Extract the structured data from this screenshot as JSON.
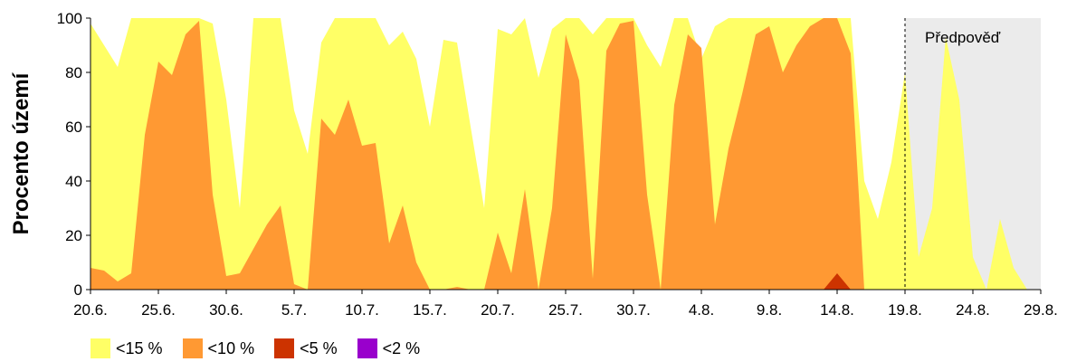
{
  "chart_data": {
    "type": "area",
    "ylabel": "Procento území",
    "ylim": [
      0,
      100
    ],
    "yticks": [
      "0",
      "20",
      "40",
      "60",
      "80",
      "100"
    ],
    "xlim_day": [
      0,
      70
    ],
    "xtick_labels": [
      "20.6.",
      "25.6.",
      "30.6.",
      "5.7.",
      "10.7.",
      "15.7.",
      "20.7.",
      "25.7.",
      "30.7.",
      "4.8.",
      "9.8.",
      "14.8.",
      "19.8.",
      "24.8.",
      "29.8."
    ],
    "xtick_days": [
      0,
      5,
      10,
      15,
      20,
      25,
      30,
      35,
      40,
      45,
      50,
      55,
      60,
      65,
      70
    ],
    "forecast_label": "Předpověď",
    "forecast_start_day": 60,
    "colors": {
      "forecast_bg": "#ebebeb",
      "s15": "#ffff66",
      "s10": "#ff9933",
      "s5": "#cc3300",
      "s2": "#9900cc"
    },
    "series": [
      {
        "name": "<15 %",
        "color": "#ffff66",
        "x": [
          0,
          1,
          2,
          3,
          4,
          5,
          6,
          7,
          8,
          9,
          10,
          11,
          12,
          13,
          14,
          15,
          16,
          17,
          18,
          19,
          20,
          21,
          22,
          23,
          24,
          25,
          26,
          27,
          28,
          29,
          30,
          31,
          32,
          33,
          34,
          35,
          36,
          37,
          38,
          39,
          40,
          41,
          42,
          43,
          44,
          45,
          46,
          47,
          48,
          49,
          50,
          51,
          52,
          53,
          54,
          55,
          56,
          57,
          58,
          59,
          60,
          61,
          62,
          63,
          64,
          65,
          66,
          67,
          68,
          69
        ],
        "values": [
          98,
          90,
          82,
          100,
          100,
          100,
          100,
          100,
          100,
          98,
          70,
          30,
          100,
          100,
          100,
          66,
          50,
          91,
          100,
          100,
          100,
          100,
          90,
          95,
          85,
          60,
          92,
          91,
          60,
          30,
          96,
          94,
          100,
          78,
          96,
          100,
          100,
          94,
          100,
          100,
          100,
          90,
          82,
          100,
          100,
          85,
          97,
          100,
          100,
          100,
          100,
          100,
          100,
          100,
          100,
          100,
          100,
          40,
          26,
          47,
          80,
          12,
          30,
          93,
          70,
          12,
          0,
          26,
          8,
          0
        ]
      },
      {
        "name": "<10 %",
        "color": "#ff9933",
        "x": [
          0,
          1,
          2,
          3,
          4,
          5,
          6,
          7,
          8,
          9,
          10,
          11,
          12,
          13,
          14,
          15,
          16,
          17,
          18,
          19,
          20,
          21,
          22,
          23,
          24,
          25,
          26,
          27,
          28,
          29,
          30,
          31,
          32,
          33,
          34,
          35,
          36,
          37,
          38,
          39,
          40,
          41,
          42,
          43,
          44,
          45,
          46,
          47,
          48,
          49,
          50,
          51,
          52,
          53,
          54,
          55,
          56,
          57,
          58,
          59,
          60,
          61,
          62,
          63,
          64,
          65,
          66,
          67,
          68,
          69
        ],
        "values": [
          8,
          7,
          3,
          6,
          57,
          84,
          79,
          94,
          99,
          35,
          5,
          6,
          15,
          24,
          31,
          2,
          0,
          63,
          57,
          70,
          53,
          54,
          17,
          31,
          10,
          0,
          0,
          1,
          0,
          0,
          21,
          6,
          37,
          0,
          30,
          94,
          77,
          4,
          88,
          98,
          99,
          35,
          0,
          68,
          94,
          89,
          24,
          52,
          72,
          94,
          97,
          80,
          90,
          97,
          100,
          100,
          87,
          0,
          0,
          0,
          0,
          0,
          0,
          0,
          0,
          0,
          0,
          0,
          0,
          0
        ]
      },
      {
        "name": "<5 %",
        "color": "#cc3300",
        "x": [
          0,
          1,
          2,
          3,
          4,
          5,
          6,
          7,
          8,
          9,
          10,
          11,
          12,
          13,
          14,
          15,
          16,
          17,
          18,
          19,
          20,
          21,
          22,
          23,
          24,
          25,
          26,
          27,
          28,
          29,
          30,
          31,
          32,
          33,
          34,
          35,
          36,
          37,
          38,
          39,
          40,
          41,
          42,
          43,
          44,
          45,
          46,
          47,
          48,
          49,
          50,
          51,
          52,
          53,
          54,
          55,
          56,
          57,
          58,
          59,
          60,
          61,
          62,
          63,
          64,
          65,
          66,
          67,
          68,
          69
        ],
        "values": [
          0,
          0,
          0,
          0,
          0,
          0,
          0,
          0,
          0,
          0,
          0,
          0,
          0,
          0,
          0,
          0,
          0,
          0,
          0,
          0,
          0,
          0,
          0,
          0,
          0,
          0,
          0,
          0,
          0,
          0,
          0,
          0,
          0,
          0,
          0,
          0,
          0,
          0,
          0,
          0,
          0,
          0,
          0,
          0,
          0,
          0,
          0,
          0,
          0,
          0,
          0,
          0,
          0,
          0,
          0,
          6,
          0,
          0,
          0,
          0,
          0,
          0,
          0,
          0,
          0,
          0,
          0,
          0,
          0,
          0
        ]
      },
      {
        "name": "<2 %",
        "color": "#9900cc",
        "x": [
          0,
          1,
          2,
          3,
          4,
          5,
          6,
          7,
          8,
          9,
          10,
          11,
          12,
          13,
          14,
          15,
          16,
          17,
          18,
          19,
          20,
          21,
          22,
          23,
          24,
          25,
          26,
          27,
          28,
          29,
          30,
          31,
          32,
          33,
          34,
          35,
          36,
          37,
          38,
          39,
          40,
          41,
          42,
          43,
          44,
          45,
          46,
          47,
          48,
          49,
          50,
          51,
          52,
          53,
          54,
          55,
          56,
          57,
          58,
          59,
          60,
          61,
          62,
          63,
          64,
          65,
          66,
          67,
          68,
          69
        ],
        "values": [
          0,
          0,
          0,
          0,
          0,
          0,
          0,
          0,
          0,
          0,
          0,
          0,
          0,
          0,
          0,
          0,
          0,
          0,
          0,
          0,
          0,
          0,
          0,
          0,
          0,
          0,
          0,
          0,
          0,
          0,
          0,
          0,
          0,
          0,
          0,
          0,
          0,
          0,
          0,
          0,
          0,
          0,
          0,
          0,
          0,
          0,
          0,
          0,
          0,
          0,
          0,
          0,
          0,
          0,
          0,
          0,
          0,
          0,
          0,
          0,
          0,
          0,
          0,
          0,
          0,
          0,
          0,
          0,
          0,
          0
        ]
      }
    ],
    "grid": false,
    "legend_position": "bottom-left"
  }
}
